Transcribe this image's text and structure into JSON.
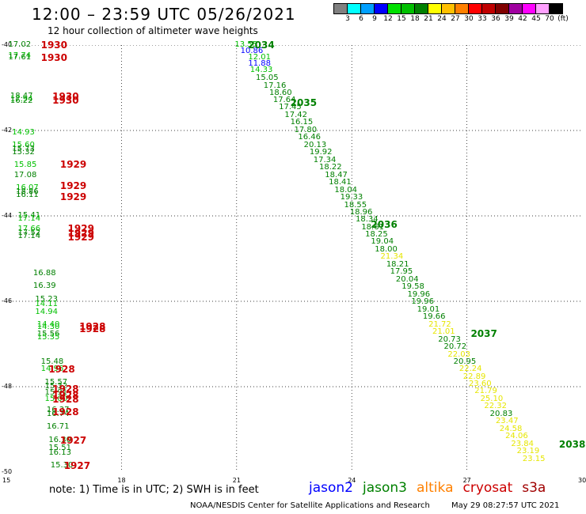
{
  "header": {
    "title": "12:00 – 23:59 UTC 05/26/2021",
    "subtitle": "12 hour collection of altimeter wave heights"
  },
  "legend": {
    "colors": [
      "#808080",
      "#00ffff",
      "#00a0ff",
      "#0000ff",
      "#00e000",
      "#00c000",
      "#008000",
      "#ffff00",
      "#ffc000",
      "#ff8000",
      "#ff0000",
      "#c00000",
      "#800000",
      "#a000a0",
      "#ff00ff",
      "#ffa0ff",
      "#000000"
    ],
    "labels": [
      "3",
      "6",
      "9",
      "12",
      "15",
      "18",
      "21",
      "24",
      "27",
      "30",
      "33",
      "36",
      "39",
      "42",
      "45",
      "70",
      "(ft)"
    ]
  },
  "axes": {
    "x_ticks": [
      "15",
      "18",
      "21",
      "24",
      "27",
      "30"
    ],
    "y_ticks": [
      "-40",
      "-42",
      "-44",
      "-46",
      "-48",
      "-50"
    ]
  },
  "satellite_colors": {
    "j2": "#0000ff",
    "j3": "#008000",
    "lj": "#00c000",
    "al": "#ff8000",
    "cr": "#cc0000",
    "s3": "#a00000"
  },
  "tracks": [
    {
      "sat": "cr",
      "x": 15.9,
      "y": -40.0,
      "label": "1930"
    },
    {
      "sat": "cr",
      "x": 15.9,
      "y": -40.3,
      "label": "1930"
    },
    {
      "sat": "cr",
      "x": 16.2,
      "y": -41.2,
      "label": "1930"
    },
    {
      "sat": "cr",
      "x": 16.2,
      "y": -41.3,
      "label": "1930"
    },
    {
      "sat": "cr",
      "x": 16.4,
      "y": -42.8,
      "label": "1929"
    },
    {
      "sat": "cr",
      "x": 16.4,
      "y": -43.3,
      "label": "1929"
    },
    {
      "sat": "cr",
      "x": 16.4,
      "y": -43.55,
      "label": "1929"
    },
    {
      "sat": "cr",
      "x": 16.6,
      "y": -44.3,
      "label": "1929"
    },
    {
      "sat": "cr",
      "x": 16.6,
      "y": -44.4,
      "label": "1929"
    },
    {
      "sat": "cr",
      "x": 16.6,
      "y": -44.5,
      "label": "1929"
    },
    {
      "sat": "cr",
      "x": 16.9,
      "y": -46.6,
      "label": "1928"
    },
    {
      "sat": "cr",
      "x": 16.9,
      "y": -46.65,
      "label": "1928"
    },
    {
      "sat": "cr",
      "x": 16.1,
      "y": -47.6,
      "label": "1928"
    },
    {
      "sat": "cr",
      "x": 16.2,
      "y": -48.05,
      "label": "1928"
    },
    {
      "sat": "cr",
      "x": 16.2,
      "y": -48.2,
      "label": "1928"
    },
    {
      "sat": "cr",
      "x": 16.2,
      "y": -48.3,
      "label": "1928"
    },
    {
      "sat": "cr",
      "x": 16.2,
      "y": -48.6,
      "label": "1928"
    },
    {
      "sat": "cr",
      "x": 16.4,
      "y": -49.25,
      "label": "1927"
    },
    {
      "sat": "cr",
      "x": 16.5,
      "y": -49.85,
      "label": "1927"
    },
    {
      "sat": "j3",
      "x": 21.3,
      "y": -40.0,
      "label": "2034"
    },
    {
      "sat": "j3",
      "x": 22.4,
      "y": -41.35,
      "label": "2035"
    },
    {
      "sat": "j3",
      "x": 24.5,
      "y": -44.2,
      "label": "2036"
    },
    {
      "sat": "j3",
      "x": 27.1,
      "y": -46.75,
      "label": "2037"
    },
    {
      "sat": "j3",
      "x": 29.4,
      "y": -49.35,
      "label": "2038"
    }
  ],
  "marks": [
    {
      "c": "j3",
      "v": "17.02",
      "x": 15.05,
      "y": -40.0
    },
    {
      "c": "lj",
      "v": "17.74",
      "x": 15.05,
      "y": -40.25
    },
    {
      "c": "j3",
      "v": "17.61",
      "x": 15.05,
      "y": -40.3
    },
    {
      "c": "j3",
      "v": "18.47",
      "x": 15.1,
      "y": -41.2
    },
    {
      "c": "lj",
      "v": "17.94",
      "x": 15.1,
      "y": -41.27
    },
    {
      "c": "j3",
      "v": "16.22",
      "x": 15.1,
      "y": -41.32
    },
    {
      "c": "lj",
      "v": "14.93",
      "x": 15.15,
      "y": -42.05
    },
    {
      "c": "lj",
      "v": "15.60",
      "x": 15.15,
      "y": -42.35
    },
    {
      "c": "j3",
      "v": "15.73",
      "x": 15.15,
      "y": -42.45
    },
    {
      "c": "j3",
      "v": "15.32",
      "x": 15.15,
      "y": -42.52
    },
    {
      "c": "lj",
      "v": "15.85",
      "x": 15.2,
      "y": -42.82
    },
    {
      "c": "j3",
      "v": "17.08",
      "x": 15.2,
      "y": -43.05
    },
    {
      "c": "lj",
      "v": "16.07",
      "x": 15.25,
      "y": -43.35
    },
    {
      "c": "j3",
      "v": "18.86",
      "x": 15.25,
      "y": -43.45
    },
    {
      "c": "j3",
      "v": "16.11",
      "x": 15.25,
      "y": -43.52
    },
    {
      "c": "j3",
      "v": "15.41",
      "x": 15.3,
      "y": -44.0
    },
    {
      "c": "lj",
      "v": "17.14",
      "x": 15.3,
      "y": -44.08
    },
    {
      "c": "lj",
      "v": "17.66",
      "x": 15.3,
      "y": -44.32
    },
    {
      "c": "j3",
      "v": "17.52",
      "x": 15.3,
      "y": -44.4
    },
    {
      "c": "j3",
      "v": "17.14",
      "x": 15.3,
      "y": -44.48
    },
    {
      "c": "j3",
      "v": "16.88",
      "x": 15.7,
      "y": -45.35
    },
    {
      "c": "j3",
      "v": "16.39",
      "x": 15.7,
      "y": -45.65
    },
    {
      "c": "j3",
      "v": "15.23",
      "x": 15.75,
      "y": -45.97
    },
    {
      "c": "lj",
      "v": "14.11",
      "x": 15.75,
      "y": -46.07
    },
    {
      "c": "lj",
      "v": "14.94",
      "x": 15.75,
      "y": -46.25
    },
    {
      "c": "lj",
      "v": "14.40",
      "x": 15.8,
      "y": -46.55
    },
    {
      "c": "lj",
      "v": "14.30",
      "x": 15.8,
      "y": -46.62
    },
    {
      "c": "j3",
      "v": "15.56",
      "x": 15.8,
      "y": -46.78
    },
    {
      "c": "lj",
      "v": "15.35",
      "x": 15.8,
      "y": -46.85
    },
    {
      "c": "j3",
      "v": "15.48",
      "x": 15.9,
      "y": -47.42
    },
    {
      "c": "lj",
      "v": "14.96",
      "x": 15.9,
      "y": -47.6
    },
    {
      "c": "j3",
      "v": "15.57",
      "x": 16.0,
      "y": -47.9
    },
    {
      "c": "j3",
      "v": "15.32",
      "x": 16.0,
      "y": -48.0
    },
    {
      "c": "j3",
      "v": "15.91",
      "x": 16.0,
      "y": -48.15
    },
    {
      "c": "lj",
      "v": "15.00",
      "x": 16.0,
      "y": -48.3
    },
    {
      "c": "j3",
      "v": "16.37",
      "x": 16.05,
      "y": -48.55
    },
    {
      "c": "j3",
      "v": "16.74",
      "x": 16.05,
      "y": -48.65
    },
    {
      "c": "j3",
      "v": "16.71",
      "x": 16.05,
      "y": -48.95
    },
    {
      "c": "j3",
      "v": "16.30",
      "x": 16.1,
      "y": -49.25
    },
    {
      "c": "j3",
      "v": "15.51",
      "x": 16.1,
      "y": -49.45
    },
    {
      "c": "j3",
      "v": "16.13",
      "x": 16.1,
      "y": -49.55
    },
    {
      "c": "j3",
      "v": "15.30",
      "x": 16.15,
      "y": -49.85
    },
    {
      "c": "lj",
      "v": "13.55",
      "x": 20.95,
      "y": -40.0
    },
    {
      "c": "j2",
      "v": "10.86",
      "x": 21.1,
      "y": -40.15
    },
    {
      "c": "lj",
      "v": "12.01",
      "x": 21.3,
      "y": -40.3
    },
    {
      "c": "j2",
      "v": "11.88",
      "x": 21.3,
      "y": -40.45
    },
    {
      "c": "lj",
      "v": "14.33",
      "x": 21.35,
      "y": -40.6
    },
    {
      "c": "j3",
      "v": "15.05",
      "x": 21.5,
      "y": -40.78
    },
    {
      "c": "j3",
      "v": "17.16",
      "x": 21.7,
      "y": -40.96
    },
    {
      "c": "j3",
      "v": "18.60",
      "x": 21.85,
      "y": -41.13
    },
    {
      "c": "j3",
      "v": "17.64",
      "x": 21.95,
      "y": -41.3
    },
    {
      "c": "j3",
      "v": "17.45",
      "x": 22.1,
      "y": -41.47
    },
    {
      "c": "j3",
      "v": "17.42",
      "x": 22.25,
      "y": -41.65
    },
    {
      "c": "j3",
      "v": "16.15",
      "x": 22.4,
      "y": -41.82
    },
    {
      "c": "j3",
      "v": "17.80",
      "x": 22.5,
      "y": -42.0
    },
    {
      "c": "j3",
      "v": "16.46",
      "x": 22.6,
      "y": -42.17
    },
    {
      "c": "j3",
      "v": "20.13",
      "x": 22.75,
      "y": -42.35
    },
    {
      "c": "j3",
      "v": "19.92",
      "x": 22.9,
      "y": -42.52
    },
    {
      "c": "j3",
      "v": "17.34",
      "x": 23.0,
      "y": -42.7
    },
    {
      "c": "j3",
      "v": "18.22",
      "x": 23.15,
      "y": -42.87
    },
    {
      "c": "j3",
      "v": "18.47",
      "x": 23.3,
      "y": -43.05
    },
    {
      "c": "j3",
      "v": "18.41",
      "x": 23.4,
      "y": -43.22
    },
    {
      "c": "j3",
      "v": "18.04",
      "x": 23.55,
      "y": -43.4
    },
    {
      "c": "j3",
      "v": "19.33",
      "x": 23.7,
      "y": -43.57
    },
    {
      "c": "j3",
      "v": "18.55",
      "x": 23.8,
      "y": -43.75
    },
    {
      "c": "j3",
      "v": "18.96",
      "x": 23.95,
      "y": -43.92
    },
    {
      "c": "j3",
      "v": "18.34",
      "x": 24.1,
      "y": -44.1
    },
    {
      "c": "j3",
      "v": "18.61",
      "x": 24.25,
      "y": -44.27
    },
    {
      "c": "j3",
      "v": "18.25",
      "x": 24.35,
      "y": -44.45
    },
    {
      "c": "j3",
      "v": "19.04",
      "x": 24.5,
      "y": -44.62
    },
    {
      "c": "j3",
      "v": "18.00",
      "x": 24.6,
      "y": -44.8
    },
    {
      "c": "yl",
      "v": "21.34",
      "x": 24.75,
      "y": -44.97
    },
    {
      "c": "j3",
      "v": "18.21",
      "x": 24.9,
      "y": -45.15
    },
    {
      "c": "j3",
      "v": "17.95",
      "x": 25.0,
      "y": -45.32
    },
    {
      "c": "j3",
      "v": "20.04",
      "x": 25.15,
      "y": -45.5
    },
    {
      "c": "j3",
      "v": "19.58",
      "x": 25.3,
      "y": -45.67
    },
    {
      "c": "j3",
      "v": "19.96",
      "x": 25.45,
      "y": -45.85
    },
    {
      "c": "j3",
      "v": "19.96",
      "x": 25.55,
      "y": -46.02
    },
    {
      "c": "j3",
      "v": "19.01",
      "x": 25.7,
      "y": -46.2
    },
    {
      "c": "j3",
      "v": "19.66",
      "x": 25.85,
      "y": -46.37
    },
    {
      "c": "yl",
      "v": "21.72",
      "x": 26.0,
      "y": -46.55
    },
    {
      "c": "yl",
      "v": "21.01",
      "x": 26.1,
      "y": -46.72
    },
    {
      "c": "j3",
      "v": "20.73",
      "x": 26.25,
      "y": -46.9
    },
    {
      "c": "j3",
      "v": "20.72",
      "x": 26.4,
      "y": -47.07
    },
    {
      "c": "yl",
      "v": "22.03",
      "x": 26.5,
      "y": -47.25
    },
    {
      "c": "j3",
      "v": "20.95",
      "x": 26.65,
      "y": -47.42
    },
    {
      "c": "yl",
      "v": "22.24",
      "x": 26.8,
      "y": -47.6
    },
    {
      "c": "yl",
      "v": "22.89",
      "x": 26.9,
      "y": -47.77
    },
    {
      "c": "yl",
      "v": "23.60",
      "x": 27.05,
      "y": -47.95
    },
    {
      "c": "yl",
      "v": "21.79",
      "x": 27.2,
      "y": -48.12
    },
    {
      "c": "yl",
      "v": "25.10",
      "x": 27.35,
      "y": -48.3
    },
    {
      "c": "yl",
      "v": "22.32",
      "x": 27.45,
      "y": -48.47
    },
    {
      "c": "j3",
      "v": "20.83",
      "x": 27.6,
      "y": -48.65
    },
    {
      "c": "yl",
      "v": "23.47",
      "x": 27.75,
      "y": -48.82
    },
    {
      "c": "yl",
      "v": "24.58",
      "x": 27.85,
      "y": -49.0
    },
    {
      "c": "yl",
      "v": "24.06",
      "x": 28.0,
      "y": -49.17
    },
    {
      "c": "yl",
      "v": "23.84",
      "x": 28.15,
      "y": -49.35
    },
    {
      "c": "yl",
      "v": "23.19",
      "x": 28.3,
      "y": -49.52
    },
    {
      "c": "yl",
      "v": "23.15",
      "x": 28.45,
      "y": -49.7
    }
  ],
  "note": "note:  1) Time is in UTC;  2) SWH is in feet",
  "satellites": [
    {
      "name": "jason2",
      "color": "#0000ff"
    },
    {
      "name": "jason3",
      "color": "#008000"
    },
    {
      "name": "altika",
      "color": "#ff8000"
    },
    {
      "name": "cryosat",
      "color": "#cc0000"
    },
    {
      "name": "s3a",
      "color": "#a00000"
    }
  ],
  "footer": {
    "org": "NOAA/NESDIS Center for Satellite Applications and Research",
    "timestamp": "May 29 08:27:57 UTC 2021"
  }
}
